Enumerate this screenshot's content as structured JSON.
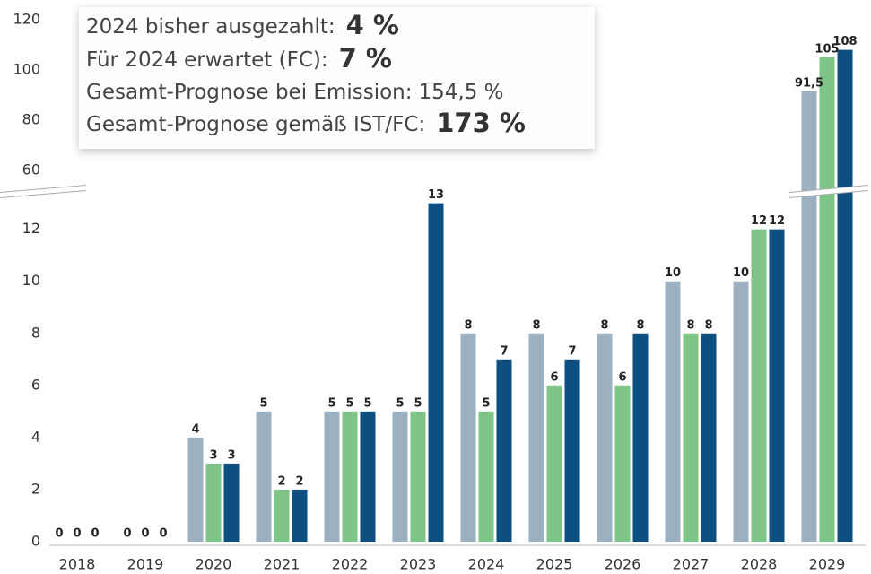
{
  "chart_data": {
    "type": "bar",
    "categories": [
      "2018",
      "2019",
      "2020",
      "2021",
      "2022",
      "2023",
      "2024",
      "2025",
      "2026",
      "2027",
      "2028",
      "2029"
    ],
    "series": [
      {
        "color": "#9bb1c2",
        "values": [
          0,
          0,
          4,
          5,
          5,
          5,
          8,
          8,
          8,
          10,
          10,
          91.5
        ],
        "value_labels": [
          "0",
          "0",
          "4",
          "5",
          "5",
          "5",
          "8",
          "8",
          "8",
          "10",
          "10",
          "91,5"
        ]
      },
      {
        "color": "#7fc487",
        "values": [
          0,
          0,
          3,
          2,
          5,
          5,
          5,
          6,
          6,
          8,
          12,
          105
        ]
      },
      {
        "color": "#0d4f80",
        "values": [
          0,
          0,
          3,
          2,
          5,
          13,
          7,
          7,
          8,
          8,
          12,
          108
        ]
      }
    ],
    "ylim": [
      0,
      13.4
    ],
    "yticks": [
      0,
      2,
      4,
      6,
      8,
      10,
      12
    ],
    "ylim_upper": [
      55,
      120
    ],
    "yticks_upper": [
      60,
      80,
      100,
      120
    ],
    "axis_break": true,
    "annotations": [
      {
        "text": "2024 bisher ausgezahlt:",
        "emphasis": "4 %",
        "bold": true
      },
      {
        "text": "Für 2024 erwartet (FC):",
        "emphasis": "7 %",
        "bold": true
      },
      {
        "text": "Gesamt-Prognose bei Emission:",
        "emphasis": "154,5 %",
        "bold": false
      },
      {
        "text": "Gesamt-Prognose gemäß IST/FC:",
        "emphasis": "173 %",
        "bold": true
      }
    ]
  }
}
